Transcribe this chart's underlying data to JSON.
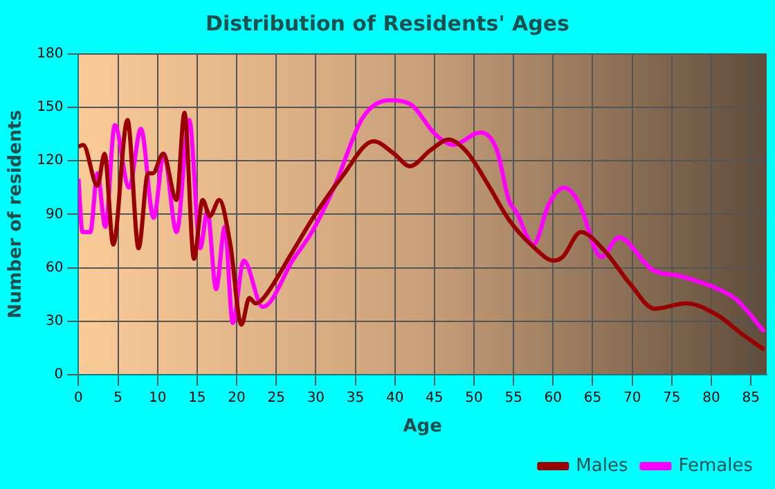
{
  "chart_data": {
    "type": "line",
    "title": "Distribution of Residents' Ages",
    "xlabel": "Age",
    "ylabel": "Number of residents",
    "xlim": [
      0,
      87
    ],
    "xticks": [
      0,
      5,
      10,
      15,
      20,
      25,
      30,
      35,
      40,
      45,
      50,
      55,
      60,
      65,
      70,
      75,
      80,
      85
    ],
    "ylim": [
      0,
      180
    ],
    "yticks": [
      0,
      30,
      60,
      90,
      120,
      150,
      180
    ],
    "grid": true,
    "legend": "bottom right",
    "marker": "none",
    "line_style": "solid",
    "series": [
      {
        "name": "Males",
        "color": "#990000",
        "x": [
          0,
          0.6,
          2.4,
          3.3,
          4.4,
          6.2,
          7.6,
          8.8,
          9.4,
          10.7,
          12.4,
          13.4,
          14.6,
          15.7,
          16.6,
          17.8,
          19.2,
          20.6,
          21.6,
          22.4,
          23.2,
          27.2,
          29.8,
          33.3,
          37.3,
          39.9,
          41.9,
          44.5,
          46.8,
          49.1,
          52,
          54.4,
          57.2,
          60.1,
          61.2,
          63.5,
          66.4,
          69.9,
          72.8,
          76.8,
          80.9,
          83.8,
          86.7
        ],
        "values": [
          128,
          129,
          106,
          124,
          73,
          143,
          71,
          113,
          113,
          124,
          98,
          147,
          65,
          98,
          89,
          98,
          73,
          28,
          43,
          40,
          42,
          70,
          89,
          111,
          131,
          124,
          117,
          126,
          132,
          125,
          105,
          87,
          73,
          64,
          66,
          80,
          70,
          50,
          37,
          40,
          33,
          23,
          14
        ]
      },
      {
        "name": "Females",
        "color": "#ff00ff",
        "x": [
          0,
          0.5,
          1.5,
          2.4,
          3.4,
          4.6,
          6.4,
          7.9,
          9.5,
          10.8,
          12.4,
          14,
          15.4,
          16.3,
          17.4,
          18.5,
          19.5,
          20.9,
          23.3,
          27.2,
          29.5,
          32.4,
          35.9,
          39.3,
          41.9,
          45.1,
          47.4,
          50.8,
          52.9,
          54.4,
          55.4,
          57.5,
          59.5,
          61.4,
          63.2,
          66.1,
          68.3,
          72.5,
          76.3,
          80.9,
          83.2,
          86.7
        ],
        "values": [
          110,
          80,
          80,
          113,
          83,
          140,
          105,
          138,
          88,
          124,
          80,
          143,
          71,
          92,
          48,
          83,
          29,
          64,
          38,
          65,
          80,
          106,
          144,
          154,
          152,
          135,
          129,
          136,
          126,
          98,
          91,
          73,
          96,
          105,
          97,
          66,
          77,
          59,
          55,
          48,
          42,
          24
        ]
      }
    ]
  }
}
